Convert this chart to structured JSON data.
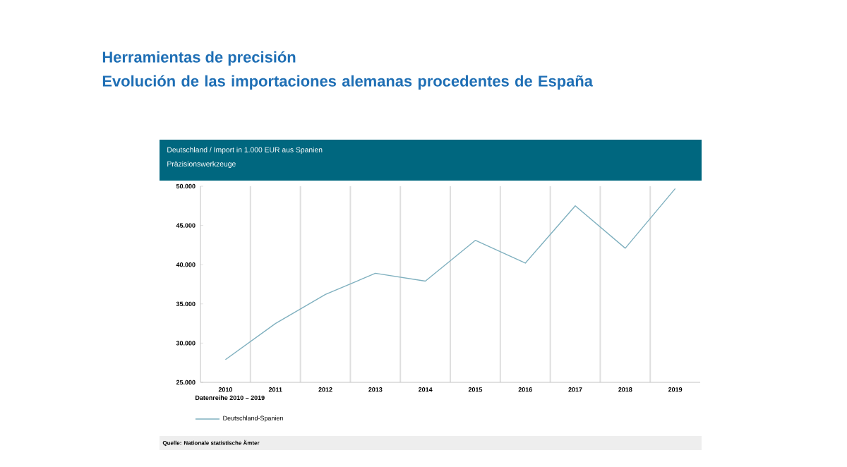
{
  "chart_data": {
    "type": "line",
    "title": "Herramientas de precisión",
    "subtitle": "Evolución de las importaciones alemanas procedentes de España",
    "annotations": [
      "Deutschland / Import in 1.000 EUR aus Spanien",
      "Präzisionswerkzeuge",
      "Datenreihe 2010 – 2019",
      "Quelle: Nationale statistische Ämter"
    ],
    "categories": [
      "2010",
      "2011",
      "2012",
      "2013",
      "2014",
      "2015",
      "2016",
      "2017",
      "2018",
      "2019"
    ],
    "series": [
      {
        "name": "Deutschland-Spanien",
        "color": "#7fb0bf",
        "values": [
          27900,
          32500,
          36200,
          38900,
          37900,
          43100,
          40200,
          47500,
          42100,
          49700
        ]
      }
    ],
    "ylim": [
      25000,
      50000
    ],
    "yticks": [
      {
        "value": 25000,
        "label": "25.000"
      },
      {
        "value": 30000,
        "label": "30.000"
      },
      {
        "value": 35000,
        "label": "35.000"
      },
      {
        "value": 40000,
        "label": "40.000"
      },
      {
        "value": 45000,
        "label": "45.000"
      },
      {
        "value": 50000,
        "label": "50.000"
      }
    ],
    "grid": "x",
    "legend": "bottom left",
    "marker": "none",
    "line_style": "solid"
  }
}
